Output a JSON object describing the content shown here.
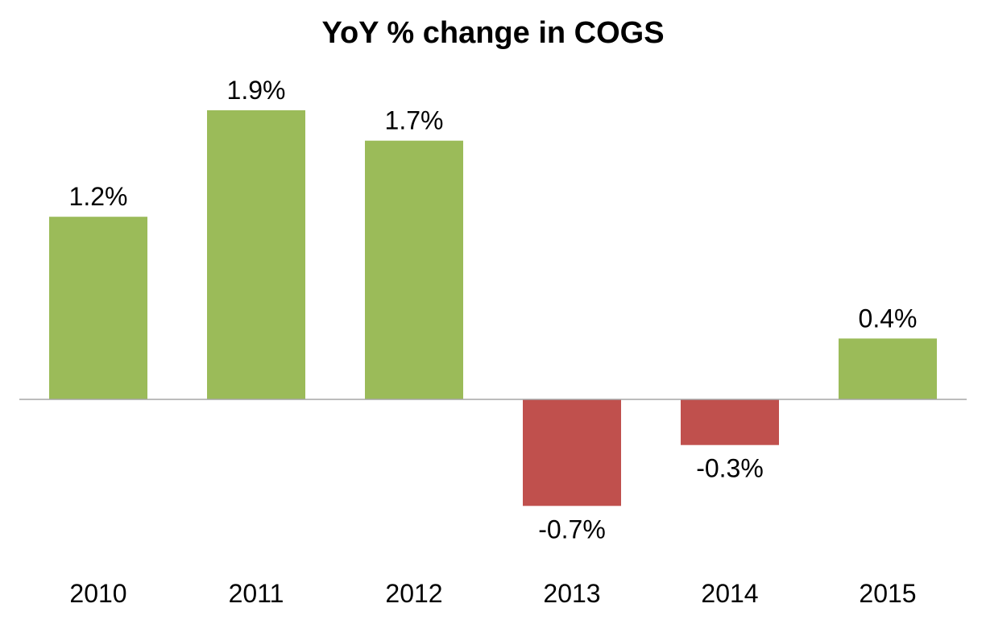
{
  "chart_data": {
    "type": "bar",
    "title": "YoY % change in COGS",
    "xlabel": "",
    "ylabel": "",
    "categories": [
      "2010",
      "2011",
      "2012",
      "2013",
      "2014",
      "2015"
    ],
    "values": [
      1.2,
      1.9,
      1.7,
      -0.7,
      -0.3,
      0.4
    ],
    "data_labels": [
      "1.2%",
      "1.9%",
      "1.7%",
      "-0.7%",
      "-0.3%",
      "0.4%"
    ],
    "value_unit": "%",
    "ylim": [
      -1.0,
      2.1
    ],
    "grid": false,
    "legend": "none",
    "positive_color": "#9BBB59",
    "negative_color": "#C0504D",
    "axis_color": "#A6A6A6"
  }
}
